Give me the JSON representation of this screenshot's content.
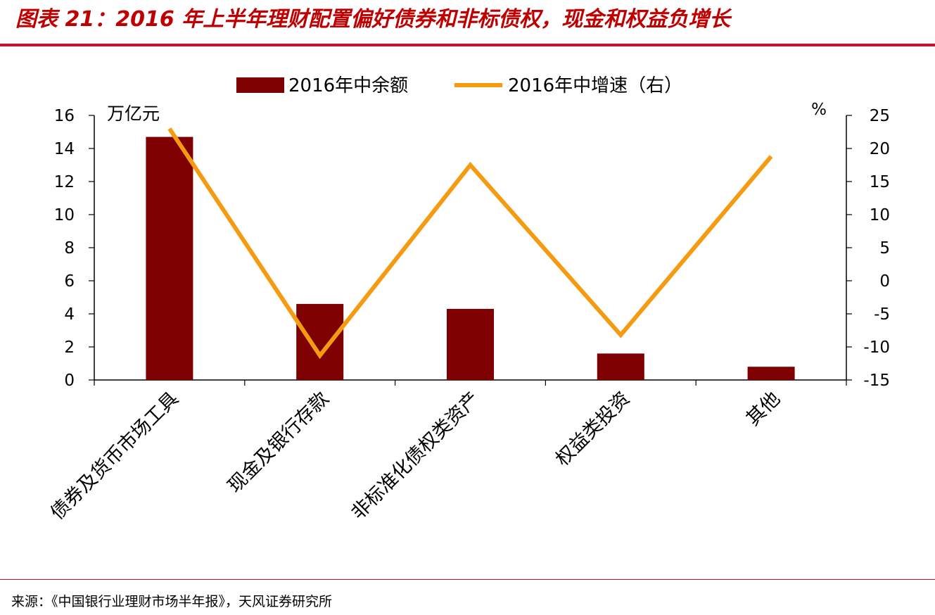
{
  "title": "图表 21：2016 年上半年理财配置偏好债券和非标债权，现金和权益负增长",
  "source": "来源：《中国银行业理财市场半年报》，天风证券研究所",
  "chart_data": {
    "type": "bar",
    "categories": [
      "债券及货币市场工具",
      "现金及银行存款",
      "非标准化债权类资产",
      "权益类投资",
      "其他"
    ],
    "series": [
      {
        "name": "2016年中余额",
        "type": "bar",
        "axis": "left",
        "values": [
          14.7,
          4.6,
          4.3,
          1.6,
          0.8
        ]
      },
      {
        "name": "2016年中增速（右）",
        "type": "line",
        "axis": "right",
        "values": [
          23.0,
          -11.3,
          17.5,
          -8.2,
          18.8
        ]
      }
    ],
    "ylabel_left": "万亿元",
    "ylabel_right": "%",
    "ylim_left": [
      0,
      16
    ],
    "ylim_right": [
      -15,
      25
    ],
    "yticks_left": [
      "0",
      "2",
      "4",
      "6",
      "8",
      "10",
      "12",
      "14",
      "16"
    ],
    "yticks_right": [
      "-15",
      "-10",
      "-5",
      "0",
      "5",
      "10",
      "15",
      "20",
      "25"
    ],
    "legend_position": "top-center",
    "grid": false,
    "colors": {
      "bar": "#7f0000",
      "line": "#f59b12",
      "title": "#c00000",
      "rule": "#c8102e"
    }
  }
}
